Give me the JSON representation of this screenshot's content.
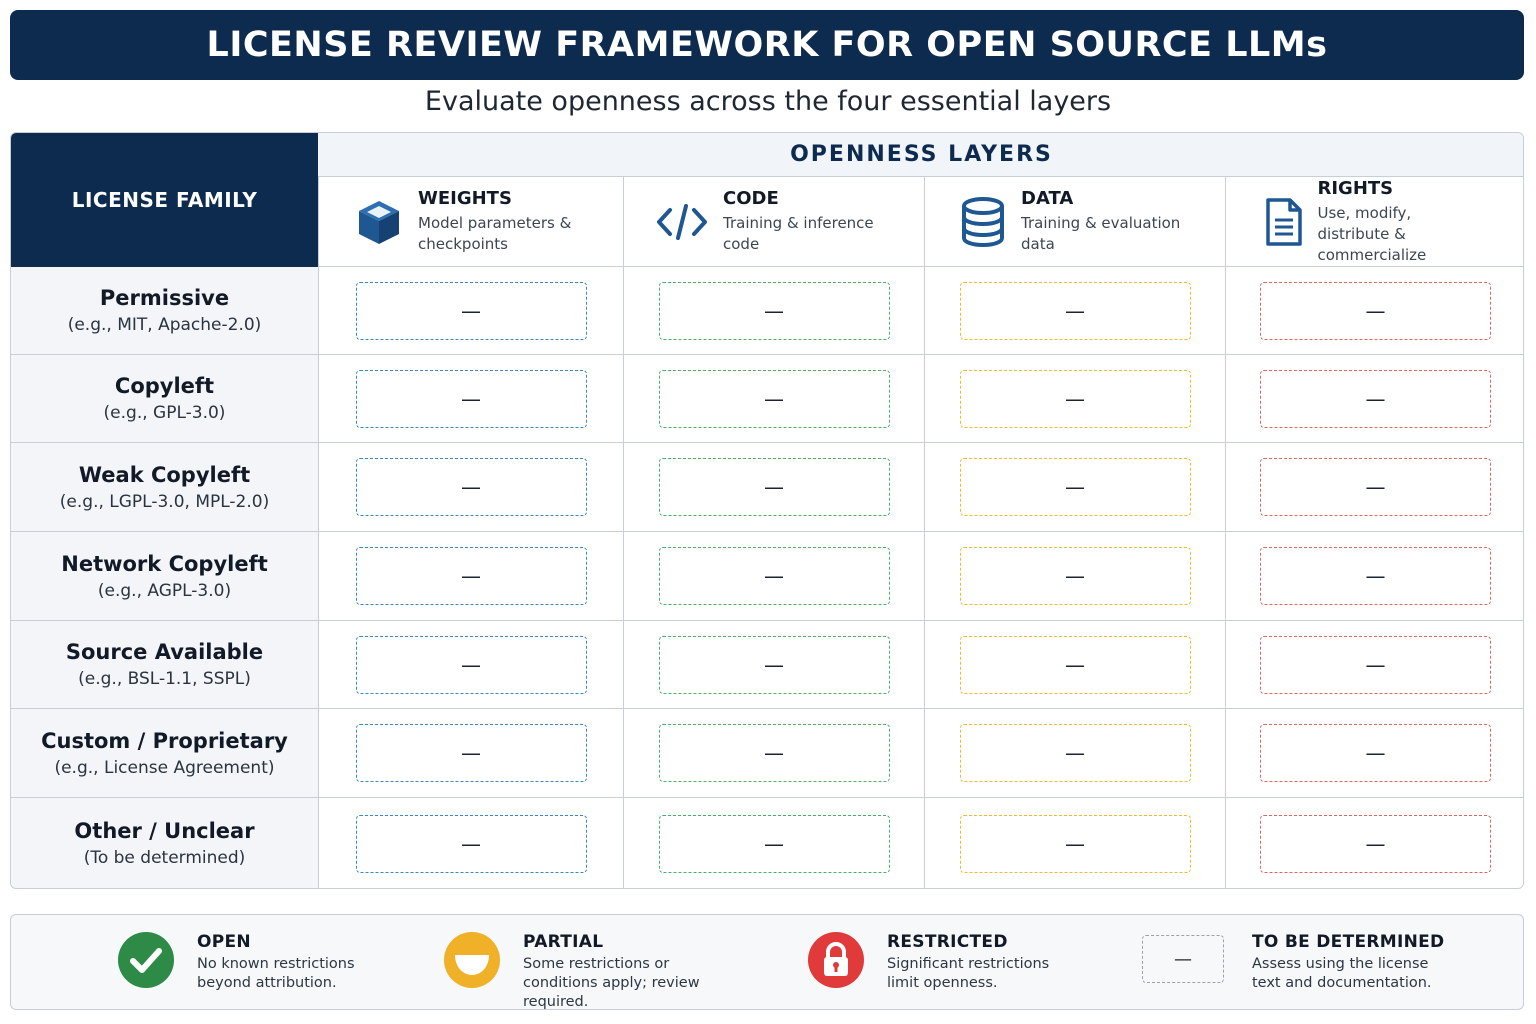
{
  "title": "LICENSE REVIEW FRAMEWORK FOR OPEN SOURCE LLMs",
  "subtitle": "Evaluate openness across the four essential layers",
  "matrix": {
    "family_header": "LICENSE FAMILY",
    "layers_header": "OPENNESS LAYERS",
    "columns": [
      {
        "title": "WEIGHTS",
        "description": "Model parameters & checkpoints",
        "icon": "cube-icon",
        "color": "#3a86c8"
      },
      {
        "title": "CODE",
        "description": "Training & inference code",
        "icon": "code-brackets-icon",
        "color": "#4caf6a"
      },
      {
        "title": "DATA",
        "description": "Training & evaluation data",
        "icon": "database-icon",
        "color": "#f2b935"
      },
      {
        "title": "RIGHTS",
        "description": "Use, modify, distribute & commercialize",
        "icon": "document-icon",
        "color": "#e06666"
      }
    ],
    "rows": [
      {
        "name": "Permissive",
        "example": "(e.g., MIT, Apache-2.0)",
        "cells": [
          "—",
          "—",
          "—",
          "—"
        ]
      },
      {
        "name": "Copyleft",
        "example": "(e.g., GPL-3.0)",
        "cells": [
          "—",
          "—",
          "—",
          "—"
        ]
      },
      {
        "name": "Weak Copyleft",
        "example": "(e.g., LGPL-3.0, MPL-2.0)",
        "cells": [
          "—",
          "—",
          "—",
          "—"
        ]
      },
      {
        "name": "Network Copyleft",
        "example": "(e.g., AGPL-3.0)",
        "cells": [
          "—",
          "—",
          "—",
          "—"
        ]
      },
      {
        "name": "Source Available",
        "example": "(e.g., BSL-1.1, SSPL)",
        "cells": [
          "—",
          "—",
          "—",
          "—"
        ]
      },
      {
        "name": "Custom / Proprietary",
        "example": "(e.g., License Agreement)",
        "cells": [
          "—",
          "—",
          "—",
          "—"
        ]
      },
      {
        "name": "Other / Unclear",
        "example": "(To be determined)",
        "cells": [
          "—",
          "—",
          "—",
          "—"
        ]
      }
    ]
  },
  "legend": {
    "open": {
      "title": "OPEN",
      "description": "No known restrictions beyond attribution.",
      "icon": "checkmark-circle-icon",
      "color": "#2e8b47"
    },
    "partial": {
      "title": "PARTIAL",
      "description": "Some restrictions or conditions apply; review required.",
      "icon": "half-circle-icon",
      "color": "#f0b027"
    },
    "restricted": {
      "title": "RESTRICTED",
      "description": "Significant restrictions limit openness.",
      "icon": "lock-icon",
      "color": "#e03a3a"
    },
    "tbd": {
      "title": "TO BE DETERMINED",
      "description": "Assess using the license text and documentation.",
      "symbol": "—"
    }
  }
}
